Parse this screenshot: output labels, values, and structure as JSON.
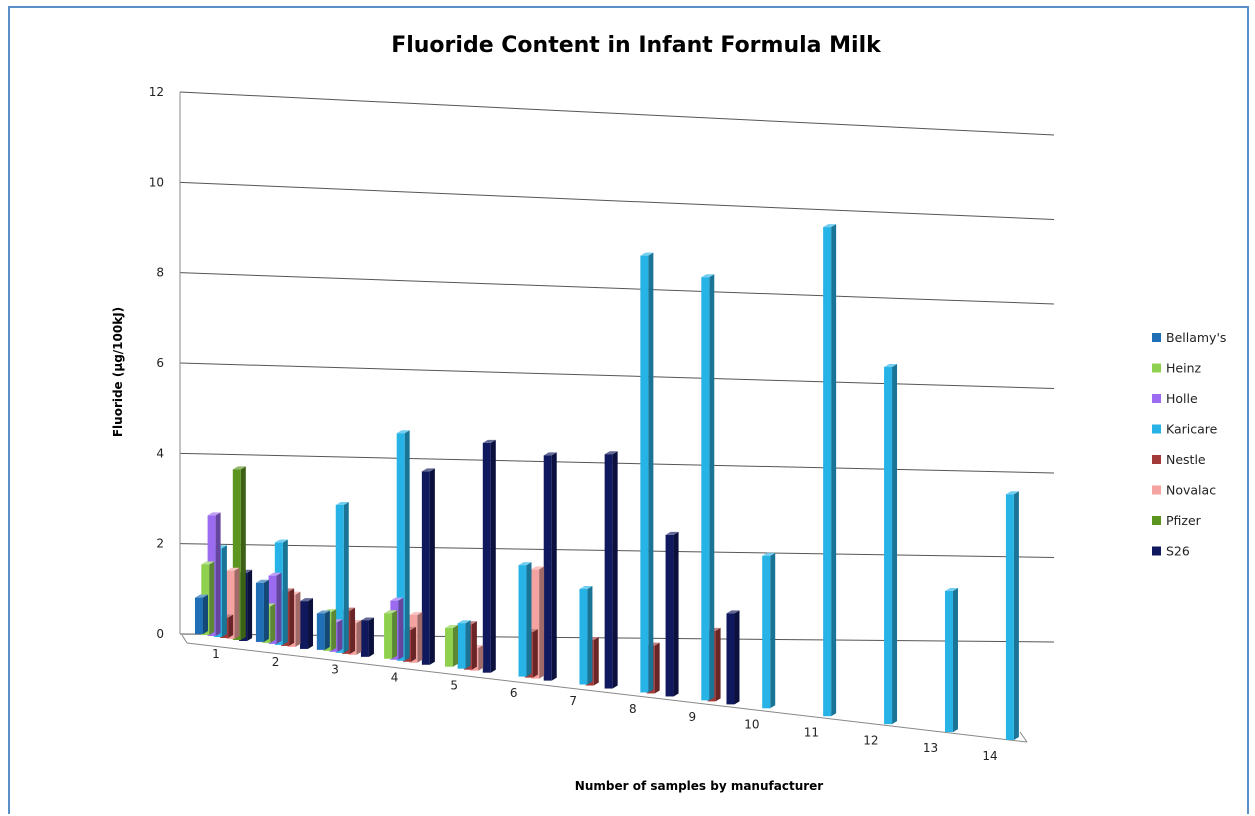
{
  "chart_data": {
    "type": "bar",
    "title": "Fluoride Content in Infant Formula Milk",
    "xlabel": "Number of samples by manufacturer",
    "ylabel": "Fluoride (µg/100kJ)",
    "ylim": [
      0,
      12
    ],
    "yticks": [
      "0",
      "2",
      "4",
      "6",
      "8",
      "10",
      "12"
    ],
    "categories": [
      "1",
      "2",
      "3",
      "4",
      "5",
      "6",
      "7",
      "8",
      "9",
      "10",
      "11",
      "12",
      "13",
      "14"
    ],
    "grid": true,
    "legend": "right",
    "series": [
      {
        "name": "Bellamy's",
        "color": "#1f6eb6",
        "values": [
          0.8,
          1.3,
          0.8,
          null,
          null,
          null,
          null,
          null,
          null,
          null,
          null,
          null,
          null,
          null
        ]
      },
      {
        "name": "Heinz",
        "color": "#8fd14f",
        "values": [
          1.55,
          0.8,
          0.85,
          1.0,
          0.85,
          null,
          null,
          null,
          null,
          null,
          null,
          null,
          null,
          null
        ]
      },
      {
        "name": "Holle",
        "color": "#9b6cf0",
        "values": [
          2.65,
          1.5,
          0.65,
          1.3,
          null,
          null,
          null,
          null,
          null,
          null,
          null,
          null,
          null,
          null
        ]
      },
      {
        "name": "Karicare",
        "color": "#27b3e6",
        "values": [
          1.95,
          2.25,
          3.25,
          5.0,
          1.0,
          2.45,
          2.1,
          9.6,
          9.3,
          3.35,
          10.75,
          7.85,
          3.1,
          5.4
        ]
      },
      {
        "name": "Nestle",
        "color": "#a33a3a",
        "values": [
          0.45,
          1.2,
          0.95,
          0.7,
          1.0,
          1.0,
          1.0,
          1.05,
          1.55,
          null,
          null,
          null,
          null,
          null
        ]
      },
      {
        "name": "Novalac",
        "color": "#f5a3a0",
        "values": [
          1.5,
          1.15,
          0.7,
          1.05,
          0.5,
          2.4,
          null,
          null,
          null,
          null,
          null,
          null,
          null,
          null
        ]
      },
      {
        "name": "Pfizer",
        "color": "#5c9420",
        "values": [
          3.75,
          null,
          null,
          null,
          null,
          null,
          null,
          null,
          null,
          null,
          null,
          null,
          null,
          null
        ]
      },
      {
        "name": "S26",
        "color": "#11195e",
        "values": [
          1.5,
          1.05,
          0.8,
          4.25,
          5.05,
          4.95,
          5.15,
          3.55,
          2.0,
          null,
          null,
          null,
          null,
          null
        ]
      }
    ]
  }
}
